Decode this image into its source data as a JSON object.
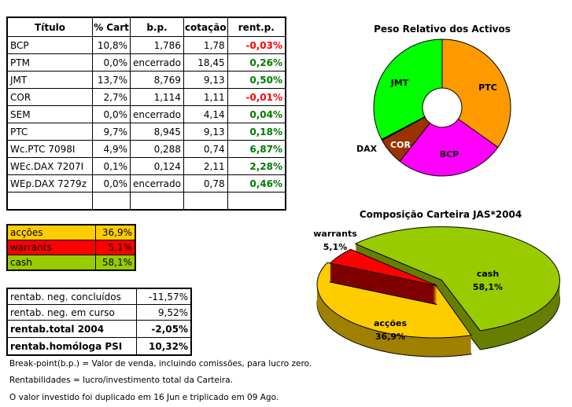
{
  "holdings": {
    "headers": [
      "Título",
      "% Cart",
      "b.p.",
      "cotação",
      "rent.p."
    ],
    "rows": [
      {
        "titulo": "BCP",
        "cart": "10,8%",
        "bp": "1,786",
        "cot": "1,78",
        "rent": "-0,03%",
        "sign": "neg"
      },
      {
        "titulo": "PTM",
        "cart": "0,0%",
        "bp": "encerrado",
        "cot": "18,45",
        "rent": "0,26%",
        "sign": "pos"
      },
      {
        "titulo": "JMT",
        "cart": "13,7%",
        "bp": "8,769",
        "cot": "9,13",
        "rent": "0,50%",
        "sign": "pos"
      },
      {
        "titulo": "COR",
        "cart": "2,7%",
        "bp": "1,114",
        "cot": "1,11",
        "rent": "-0,01%",
        "sign": "neg"
      },
      {
        "titulo": "SEM",
        "cart": "0,0%",
        "bp": "encerrado",
        "cot": "4,14",
        "rent": "0,04%",
        "sign": "pos"
      },
      {
        "titulo": "PTC",
        "cart": "9,7%",
        "bp": "8,945",
        "cot": "9,13",
        "rent": "0,18%",
        "sign": "pos"
      },
      {
        "titulo": "Wc.PTC 7098I",
        "cart": "4,9%",
        "bp": "0,288",
        "cot": "0,74",
        "rent": "6,87%",
        "sign": "pos"
      },
      {
        "titulo": "WEc.DAX 7207I",
        "cart": "0,1%",
        "bp": "0,124",
        "cot": "2,11",
        "rent": "2,28%",
        "sign": "pos"
      },
      {
        "titulo": "WEp.DAX 7279z",
        "cart": "0,0%",
        "bp": "encerrado",
        "cot": "0,78",
        "rent": "0,46%",
        "sign": "pos"
      }
    ]
  },
  "allocation": [
    {
      "label": "acções",
      "value": "36,9%",
      "color": "#ffcc00"
    },
    {
      "label": "warrants",
      "value": "5,1%",
      "color": "#ff0000"
    },
    {
      "label": "cash",
      "value": "58,1%",
      "color": "#99cc00"
    }
  ],
  "returns": [
    {
      "label": "rentab. neg. concluídos",
      "value": "-11,57%",
      "bold": false
    },
    {
      "label": "rentab. neg. em curso",
      "value": "9,52%",
      "bold": false
    },
    {
      "label": "rentab.total 2004",
      "value": "-2,05%",
      "bold": true
    },
    {
      "label": "rentab.homóloga PSI",
      "value": "10,32%",
      "bold": true
    }
  ],
  "notes": [
    "Break-point(b.p.) = Valor de venda, incluindo comissões, para lucro zero.",
    "Rentabilidades = lucro/investimento total da Carteira.",
    "O valor investido foi duplicado em 16 Jun e triplicado em 09 Ago."
  ],
  "chart_data": [
    {
      "type": "pie",
      "variant": "donut",
      "title": "Peso Relativo dos Activos",
      "slices": [
        {
          "label": "PTC",
          "value": 14.6,
          "color": "#ff9900",
          "labelColor": "#000"
        },
        {
          "label": "BCP",
          "value": 10.8,
          "color": "#ff00ff",
          "labelColor": "#000"
        },
        {
          "label": "COR",
          "value": 2.7,
          "color": "#993300",
          "labelColor": "#fff"
        },
        {
          "label": "DAX",
          "value": 0.1,
          "color": "#000080",
          "labelColor": "#000"
        },
        {
          "label": "JMT",
          "value": 13.7,
          "color": "#00ff00",
          "labelColor": "#000"
        }
      ]
    },
    {
      "type": "pie",
      "variant": "3d-exploded",
      "title": "Composição Carteira JAS*2004",
      "slices": [
        {
          "label": "cash",
          "value": 58.1,
          "text": "58,1%",
          "color": "#99cc00",
          "dark": "#667f00"
        },
        {
          "label": "acções",
          "value": 36.9,
          "text": "36,9%",
          "color": "#ffcc00",
          "dark": "#a08000"
        },
        {
          "label": "warrants",
          "value": 5.1,
          "text": "5,1%",
          "color": "#ff0000",
          "dark": "#800000"
        }
      ]
    }
  ]
}
